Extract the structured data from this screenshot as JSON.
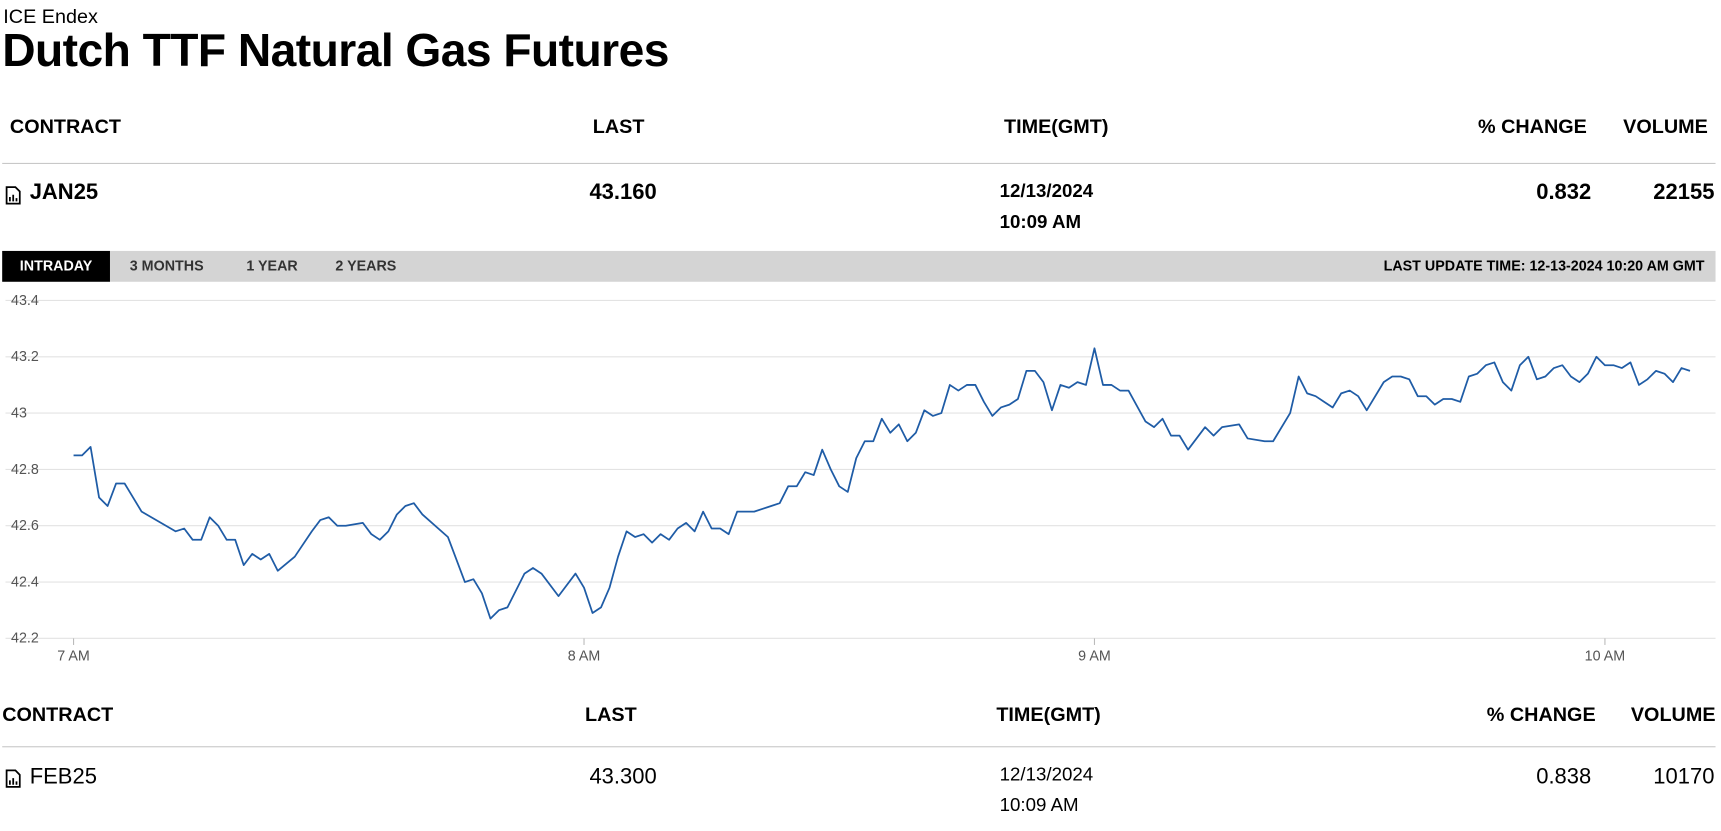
{
  "header": {
    "source": "ICE Endex",
    "title": "Dutch TTF Natural Gas Futures"
  },
  "front_table": {
    "columns": [
      "CONTRACT",
      "LAST",
      "TIME(GMT)",
      "% CHANGE",
      "VOLUME"
    ],
    "rows": [
      [
        "JAN25",
        "43.160",
        "12/13/2024",
        "10:09 AM",
        "0.832",
        "22155"
      ]
    ]
  },
  "tabs": [
    "INTRADAY",
    "3 MONTHS",
    "1 YEAR",
    "2 YEARS"
  ],
  "last_update": "LAST UPDATE TIME: 12-13-2024 10:20 AM GMT",
  "chart_data": {
    "type": "line",
    "color": "#1f5ca6",
    "grid": true,
    "xlim": [
      412,
      613
    ],
    "xticks": [
      {
        "value": 420,
        "label": "7 AM"
      },
      {
        "value": 480,
        "label": "8 AM"
      },
      {
        "value": 540,
        "label": "9 AM"
      },
      {
        "value": 600,
        "label": "10 AM"
      }
    ],
    "ylim": [
      42.2,
      43.4
    ],
    "yticks": [
      42.2,
      42.4,
      42.6,
      42.8,
      43,
      43.2,
      43.4
    ],
    "x": [
      420,
      421,
      422,
      423,
      424,
      425,
      426,
      428,
      432,
      433,
      434,
      435,
      436,
      437,
      438,
      439,
      440,
      441,
      442,
      443,
      444,
      446,
      448,
      449,
      450,
      451,
      452,
      454,
      455,
      456,
      457,
      458,
      459,
      460,
      461,
      464,
      466,
      467,
      468,
      469,
      470,
      471,
      473,
      474,
      475,
      477,
      479,
      480,
      481,
      482,
      483,
      484,
      485,
      486,
      487,
      488,
      489,
      490,
      491,
      492,
      493,
      494,
      495,
      496,
      497,
      498,
      499,
      500,
      501,
      502,
      503,
      504,
      505,
      506,
      507,
      508,
      509,
      510,
      511,
      512,
      513,
      514,
      515,
      516,
      517,
      518,
      519,
      520,
      521,
      522,
      523,
      524,
      525,
      526,
      527,
      528,
      529,
      530,
      531,
      532,
      533,
      534,
      535,
      536,
      537,
      538,
      539,
      540,
      541,
      542,
      543,
      544,
      546,
      547,
      548,
      549,
      550,
      551,
      552,
      553,
      554,
      555,
      557,
      558,
      560,
      561,
      563,
      564,
      565,
      566,
      567,
      568,
      569,
      570,
      571,
      572,
      574,
      575,
      576,
      577,
      578,
      579,
      580,
      581,
      582,
      583,
      584,
      585,
      586,
      587,
      588,
      589,
      590,
      591,
      592,
      593,
      594,
      595,
      596,
      597,
      598,
      599,
      600,
      601,
      602,
      603,
      604,
      605,
      606,
      607,
      608,
      609,
      610
    ],
    "values": [
      42.85,
      42.85,
      42.88,
      42.7,
      42.67,
      42.75,
      42.75,
      42.65,
      42.58,
      42.59,
      42.55,
      42.55,
      42.63,
      42.6,
      42.55,
      42.55,
      42.46,
      42.5,
      42.48,
      42.5,
      42.44,
      42.49,
      42.58,
      42.62,
      42.63,
      42.6,
      42.6,
      42.61,
      42.57,
      42.55,
      42.58,
      42.64,
      42.67,
      42.68,
      42.64,
      42.56,
      42.4,
      42.41,
      42.36,
      42.27,
      42.3,
      42.31,
      42.43,
      42.45,
      42.43,
      42.35,
      42.43,
      42.38,
      42.29,
      42.31,
      42.38,
      42.49,
      42.58,
      42.56,
      42.57,
      42.54,
      42.57,
      42.55,
      42.59,
      42.61,
      42.58,
      42.65,
      42.59,
      42.59,
      42.57,
      42.65,
      42.65,
      42.65,
      42.66,
      42.67,
      42.68,
      42.74,
      42.74,
      42.79,
      42.78,
      42.87,
      42.8,
      42.74,
      42.72,
      42.84,
      42.9,
      42.9,
      42.98,
      42.93,
      42.96,
      42.9,
      42.93,
      43.01,
      42.99,
      43.0,
      43.1,
      43.08,
      43.1,
      43.1,
      43.04,
      42.99,
      43.02,
      43.03,
      43.05,
      43.15,
      43.15,
      43.11,
      43.01,
      43.1,
      43.09,
      43.11,
      43.1,
      43.23,
      43.1,
      43.1,
      43.08,
      43.08,
      42.97,
      42.95,
      42.98,
      42.92,
      42.92,
      42.87,
      42.91,
      42.95,
      42.92,
      42.95,
      42.96,
      42.91,
      42.9,
      42.9,
      43.0,
      43.13,
      43.07,
      43.06,
      43.04,
      43.02,
      43.07,
      43.08,
      43.06,
      43.01,
      43.11,
      43.13,
      43.13,
      43.12,
      43.06,
      43.06,
      43.03,
      43.05,
      43.05,
      43.04,
      43.13,
      43.14,
      43.17,
      43.18,
      43.11,
      43.08,
      43.17,
      43.2,
      43.12,
      43.13,
      43.16,
      43.17,
      43.13,
      43.11,
      43.14,
      43.2,
      43.17,
      43.17,
      43.16,
      43.18,
      43.1,
      43.12,
      43.15,
      43.14,
      43.11,
      43.16,
      43.15
    ]
  },
  "second_table": {
    "columns": [
      "CONTRACT",
      "LAST",
      "TIME(GMT)",
      "% CHANGE",
      "VOLUME"
    ],
    "rows": [
      [
        "FEB25",
        "43.300",
        "12/13/2024",
        "10:09 AM",
        "0.838",
        "10170"
      ]
    ]
  }
}
